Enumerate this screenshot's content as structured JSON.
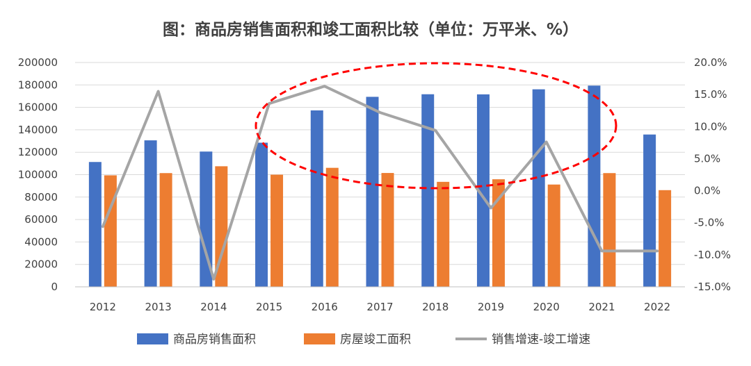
{
  "chart_data": {
    "type": "bar",
    "title": "图：商品房销售面积和竣工面积比较（单位：万平米、%）",
    "categories": [
      "2012",
      "2013",
      "2014",
      "2015",
      "2016",
      "2017",
      "2018",
      "2019",
      "2020",
      "2021",
      "2022"
    ],
    "series": [
      {
        "name": "商品房销售面积",
        "type": "bar",
        "axis": "left",
        "color": "#4472C4",
        "values": [
          111300,
          130600,
          120600,
          128500,
          157300,
          169400,
          171700,
          171600,
          176100,
          179400,
          135800
        ]
      },
      {
        "name": "房屋竣工面积",
        "type": "bar",
        "axis": "left",
        "color": "#ED7D31",
        "values": [
          99400,
          101400,
          107500,
          100000,
          106100,
          101500,
          93600,
          95900,
          91200,
          101400,
          86200
        ]
      },
      {
        "name": "销售增速-竣工增速",
        "type": "line",
        "axis": "right",
        "color": "#A5A5A5",
        "values": [
          -5.6,
          15.5,
          -13.8,
          13.6,
          16.3,
          12.2,
          9.4,
          -2.7,
          7.6,
          -9.4,
          -9.4
        ]
      }
    ],
    "y_left": {
      "min": 0,
      "max": 200000,
      "ticks": [
        "0",
        "20000",
        "40000",
        "60000",
        "80000",
        "100000",
        "120000",
        "140000",
        "160000",
        "180000",
        "200000"
      ]
    },
    "y_right": {
      "min": -15,
      "max": 20,
      "ticks": [
        "-15.0%",
        "-10.0%",
        "-5.0%",
        "0.0%",
        "5.0%",
        "10.0%",
        "15.0%",
        "20.0%"
      ]
    },
    "grid": true,
    "legend_position": "bottom",
    "annotation": {
      "shape": "dashed-ellipse",
      "color": "#FF0000",
      "span": "2015-2021"
    }
  }
}
